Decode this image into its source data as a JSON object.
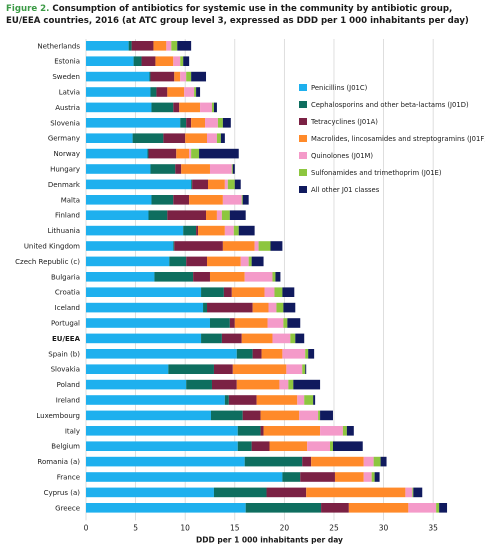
{
  "figure": {
    "label": "Figure 2.",
    "title": "Consumption of antibiotics for systemic use in the community by antibiotic group, EU/EEA countries, 2016 (at ATC group level 3, expressed as DDD per 1 000 inhabitants per day)"
  },
  "chart_data": {
    "type": "bar",
    "orientation": "horizontal",
    "stacked": true,
    "title": "",
    "xlabel": "DDD per 1 000 inhabitants per day",
    "ylabel": "",
    "xlim": [
      0,
      37
    ],
    "xticks": [
      0,
      5,
      10,
      15,
      20,
      25,
      30,
      35
    ],
    "grid": true,
    "legend_position": "right",
    "highlight_category": "EU/EEA",
    "categories": [
      "Netherlands",
      "Estonia",
      "Sweden",
      "Latvia",
      "Austria",
      "Slovenia",
      "Germany",
      "Norway",
      "Hungary",
      "Denmark",
      "Malta",
      "Finland",
      "Lithuania",
      "United Kingdom",
      "Czech Republic (c)",
      "Bulgaria",
      "Croatia",
      "Iceland",
      "Portugal",
      "EU/EEA",
      "Spain (b)",
      "Slovakia",
      "Poland",
      "Ireland",
      "Luxembourg",
      "Italy",
      "Belgium",
      "Romania (a)",
      "France",
      "Cyprus (a)",
      "Greece"
    ],
    "series": [
      {
        "name": "Penicillins (J01C)",
        "color": "#1eb0ee",
        "values": [
          4.3,
          4.8,
          6.4,
          6.5,
          6.6,
          9.5,
          4.7,
          6.2,
          6.5,
          10.6,
          6.6,
          6.3,
          9.8,
          8.8,
          8.4,
          6.9,
          11.6,
          11.8,
          12.5,
          11.6,
          15.2,
          8.3,
          10.1,
          14.0,
          12.6,
          15.3,
          15.3,
          16.0,
          19.8,
          12.9,
          16.1
        ]
      },
      {
        "name": "Cephalosporins and other beta-lactams (J01D)",
        "color": "#0e6e5f",
        "values": [
          0.3,
          0.8,
          0.1,
          0.6,
          2.2,
          0.6,
          3.1,
          0.1,
          2.5,
          0.1,
          2.2,
          1.9,
          1.3,
          0.1,
          1.7,
          3.9,
          2.3,
          0.4,
          2.0,
          2.1,
          1.6,
          4.6,
          2.6,
          0.4,
          3.2,
          2.3,
          1.4,
          5.8,
          1.8,
          5.3,
          7.6
        ]
      },
      {
        "name": "Tetracyclines (J01A)",
        "color": "#7b2144",
        "values": [
          2.2,
          1.4,
          2.4,
          1.1,
          0.6,
          0.5,
          2.2,
          2.8,
          0.6,
          1.6,
          1.6,
          3.9,
          0.2,
          4.9,
          2.1,
          1.7,
          0.8,
          4.6,
          0.5,
          2.0,
          0.9,
          1.9,
          2.5,
          2.8,
          1.8,
          0.3,
          1.8,
          0.9,
          3.5,
          4.0,
          2.8
        ]
      },
      {
        "name": "Macrolides, lincosamides and streptogramins (J01F)",
        "color": "#ff8a2a",
        "values": [
          1.3,
          1.8,
          0.6,
          1.7,
          2.1,
          1.4,
          2.2,
          1.3,
          2.9,
          1.7,
          3.4,
          1.1,
          2.7,
          3.2,
          3.4,
          3.5,
          3.3,
          1.6,
          3.3,
          3.1,
          2.1,
          5.4,
          4.3,
          4.1,
          3.9,
          5.7,
          3.8,
          5.3,
          2.9,
          10.0,
          6.0
        ]
      },
      {
        "name": "Quinolones (J01M)",
        "color": "#f49ac9",
        "values": [
          0.5,
          0.7,
          0.6,
          1.0,
          1.2,
          1.3,
          1.0,
          0.2,
          2.2,
          0.3,
          1.9,
          0.5,
          0.9,
          0.4,
          0.8,
          2.8,
          1.0,
          0.8,
          1.6,
          1.8,
          2.3,
          1.6,
          0.9,
          0.7,
          1.9,
          2.3,
          2.3,
          1.0,
          0.8,
          0.7,
          2.8
        ]
      },
      {
        "name": "Sulfonamides and trimethoprim (J01E)",
        "color": "#8dc63f",
        "values": [
          0.6,
          0.3,
          0.5,
          0.2,
          0.2,
          0.5,
          0.4,
          0.8,
          0.1,
          0.7,
          0.1,
          0.8,
          0.5,
          1.2,
          0.3,
          0.3,
          0.8,
          0.7,
          0.4,
          0.5,
          0.3,
          0.3,
          0.5,
          0.9,
          0.2,
          0.4,
          0.3,
          0.7,
          0.3,
          0.1,
          0.3
        ]
      },
      {
        "name": "All other J01 classes",
        "color": "#101a5e",
        "values": [
          1.4,
          0.6,
          1.5,
          0.4,
          0.3,
          0.8,
          0.4,
          4.0,
          0.2,
          0.6,
          0.6,
          1.6,
          1.6,
          1.2,
          1.2,
          0.5,
          1.2,
          1.2,
          1.3,
          0.9,
          0.6,
          0.1,
          2.7,
          0.2,
          1.3,
          0.7,
          3.0,
          0.6,
          0.5,
          0.9,
          0.8
        ]
      }
    ]
  }
}
